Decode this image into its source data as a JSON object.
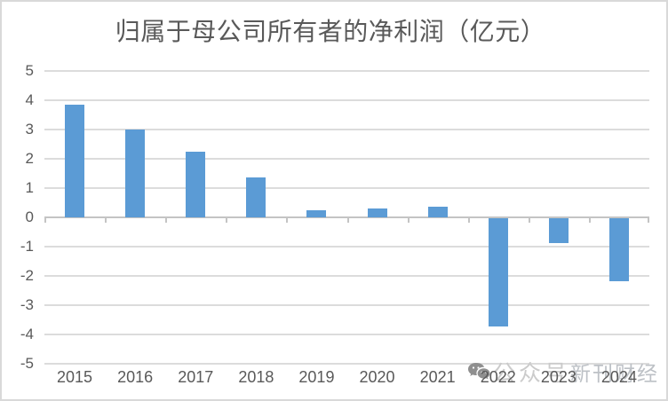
{
  "chart_data": {
    "type": "bar",
    "title": "归属于母公司所有者的净利润（亿元）",
    "categories": [
      "2015",
      "2016",
      "2017",
      "2018",
      "2019",
      "2020",
      "2021",
      "2022",
      "2023",
      "2024"
    ],
    "values": [
      3.85,
      3.0,
      2.25,
      1.35,
      0.25,
      0.3,
      0.35,
      -3.7,
      -0.85,
      -2.15
    ],
    "series_name": "归属于母公司所有者的净利润",
    "xlabel": "",
    "ylabel": "",
    "ylim": [
      -5,
      5
    ],
    "yticks": [
      5,
      4,
      3,
      2,
      1,
      0,
      -1,
      -2,
      -3,
      -4,
      -5
    ],
    "grid": true,
    "legend": false,
    "bar_color": "#5B9BD5"
  },
  "colors": {
    "bar": "#5B9BD5",
    "gridline": "#dcdcdc",
    "axis": "#c4c4c4",
    "text": "#595959",
    "border": "#d9d9d9",
    "watermark_icon": "#8f8f8f"
  },
  "watermark": {
    "icon": "wechat-icon",
    "prefix": "公众号",
    "name": "新刊财经"
  }
}
